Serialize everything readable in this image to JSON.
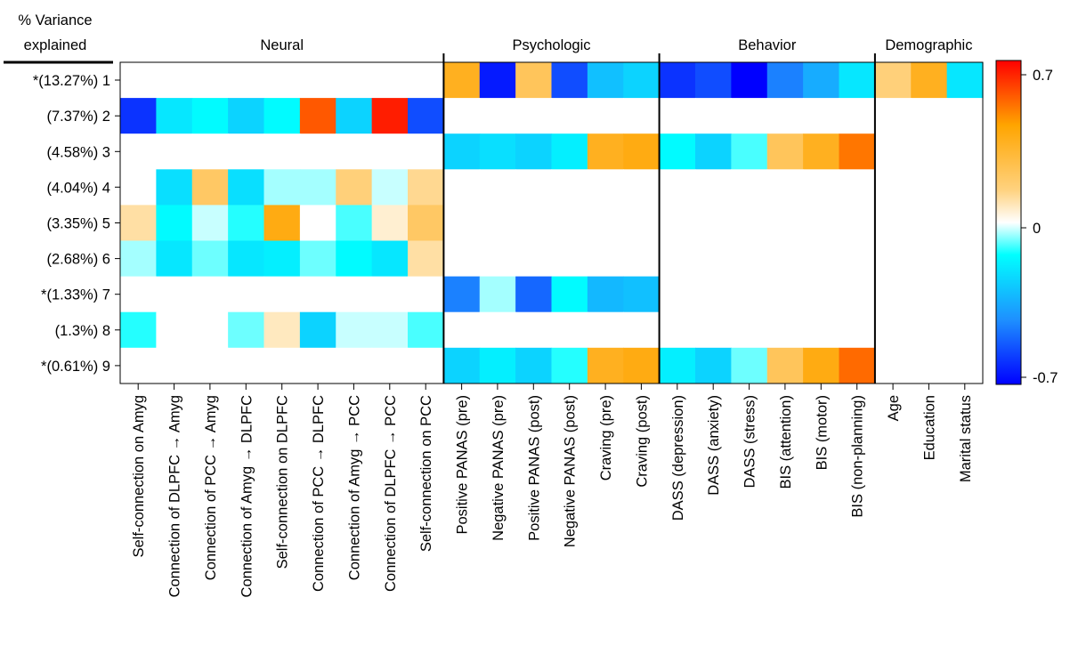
{
  "chart_data": {
    "type": "heatmap",
    "ylabel_line1": "% Variance",
    "ylabel_line2": "explained",
    "groups": [
      {
        "name": "Neural",
        "start": 0,
        "end": 9
      },
      {
        "name": "Psychologic",
        "start": 9,
        "end": 15
      },
      {
        "name": "Behavior",
        "start": 15,
        "end": 21
      },
      {
        "name": "Demographic",
        "start": 21,
        "end": 24
      }
    ],
    "rows": [
      "*(13.27%) 1",
      "(7.37%) 2",
      "(4.58%) 3",
      "(4.04%) 4",
      "(3.35%) 5",
      "(2.68%) 6",
      "*(1.33%) 7",
      "(1.3%) 8",
      "*(0.61%) 9"
    ],
    "columns": [
      "Self-connection on Amyg",
      "Connection of DLPFC → Amyg",
      "Connection of PCC → Amyg",
      "Connection of Amyg → DLPFC",
      "Self-connection on DLPFC",
      "Connection of PCC → DLPFC",
      "Connection of Amyg → PCC",
      "Connection of DLPFC → PCC",
      "Self-connection on PCC",
      "Positive PANAS (pre)",
      "Negative PANAS (pre)",
      "Positive PANAS (post)",
      "Negative PANAS (post)",
      "Craving (pre)",
      "Craving (post)",
      "DASS (depression)",
      "DASS (anxiety)",
      "DASS (stress)",
      "BIS (attention)",
      "BIS (motor)",
      "BIS (non-planning)",
      "Age",
      "Education",
      "Marital status"
    ],
    "values": [
      [
        0,
        0,
        0,
        0,
        0,
        0,
        0,
        0,
        0,
        0.35,
        -0.65,
        0.22,
        -0.55,
        -0.3,
        -0.25,
        -0.6,
        -0.55,
        -0.7,
        -0.45,
        -0.35,
        -0.2,
        0.15,
        0.35,
        -0.2
      ],
      [
        -0.6,
        -0.2,
        -0.15,
        -0.25,
        -0.15,
        0.55,
        -0.25,
        0.65,
        -0.55,
        0,
        0,
        0,
        0,
        0,
        0,
        0,
        0,
        0,
        0,
        0,
        0,
        0,
        0,
        0
      ],
      [
        0,
        0,
        0,
        0,
        0,
        0,
        0,
        0,
        0,
        -0.25,
        -0.22,
        -0.25,
        -0.18,
        0.35,
        0.38,
        -0.15,
        -0.25,
        -0.1,
        0.22,
        0.35,
        0.5,
        0,
        0,
        0
      ],
      [
        0,
        -0.22,
        0.2,
        -0.22,
        -0.05,
        -0.05,
        0.15,
        -0.03,
        0.12,
        0,
        0,
        0,
        0,
        0,
        0,
        0,
        0,
        0,
        0,
        0,
        0,
        0,
        0,
        0
      ],
      [
        0.1,
        -0.15,
        -0.03,
        -0.12,
        0.38,
        0,
        -0.1,
        0.05,
        0.2,
        0,
        0,
        0,
        0,
        0,
        0,
        0,
        0,
        0,
        0,
        0,
        0,
        0,
        0,
        0
      ],
      [
        -0.05,
        -0.2,
        -0.08,
        -0.2,
        -0.18,
        -0.08,
        -0.15,
        -0.2,
        0.1,
        0,
        0,
        0,
        0,
        0,
        0,
        0,
        0,
        0,
        0,
        0,
        0,
        0,
        0,
        0
      ],
      [
        0,
        0,
        0,
        0,
        0,
        0,
        0,
        0,
        0,
        -0.45,
        -0.05,
        -0.5,
        -0.15,
        -0.32,
        -0.3,
        0,
        0,
        0,
        0,
        0,
        0,
        0,
        0,
        0
      ],
      [
        -0.12,
        0,
        0,
        -0.08,
        0.07,
        -0.25,
        -0.03,
        -0.03,
        -0.1,
        0,
        0,
        0,
        0,
        0,
        0,
        0,
        0,
        0,
        0,
        0,
        0,
        0,
        0,
        0
      ],
      [
        0,
        0,
        0,
        0,
        0,
        0,
        0,
        0,
        0,
        -0.25,
        -0.18,
        -0.25,
        -0.12,
        0.35,
        0.38,
        -0.18,
        -0.25,
        -0.08,
        0.22,
        0.38,
        0.52,
        0,
        0,
        0
      ]
    ],
    "colorbar": {
      "min": -0.7,
      "max": 0.7,
      "ticks": [
        "0.7",
        "0",
        "-0.7"
      ],
      "colors": [
        "#0000ff",
        "#1e90ff",
        "#00ffff",
        "#ffffff",
        "#ffd700",
        "#ffa500",
        "#ff0000"
      ]
    }
  }
}
